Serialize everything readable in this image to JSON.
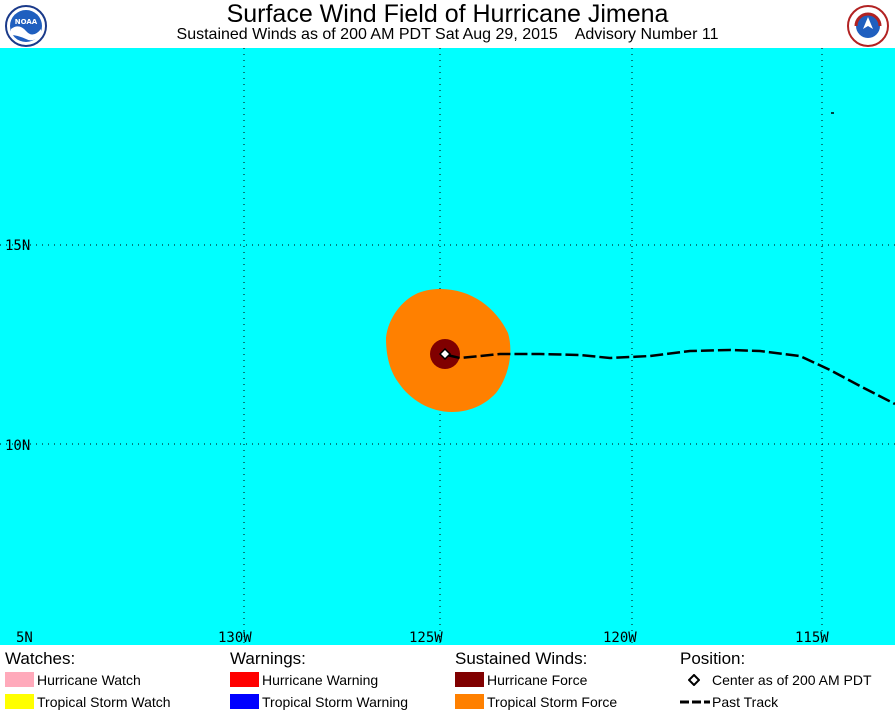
{
  "header": {
    "title": "Surface Wind Field of Hurricane Jimena",
    "subtitle": "Sustained Winds as of 200 AM PDT Sat Aug 29, 2015    Advisory Number 11",
    "left_logo_text": "NOAA",
    "right_logo_text": "NATIONAL WEATHER SERVICE"
  },
  "map": {
    "ocean_color": "#00ffff",
    "lat_labels": [
      "15N",
      "10N",
      "5N"
    ],
    "lon_labels": [
      "130W",
      "125W",
      "120W",
      "115W"
    ],
    "tropical_storm_force_color": "#ff8000",
    "hurricane_force_color": "#800000",
    "track_color": "#000000"
  },
  "legend": {
    "watches": {
      "heading": "Watches:",
      "items": [
        {
          "label": "Hurricane Watch",
          "color": "#ffaabb"
        },
        {
          "label": "Tropical Storm Watch",
          "color": "#ffff00"
        }
      ]
    },
    "warnings": {
      "heading": "Warnings:",
      "items": [
        {
          "label": "Hurricane Warning",
          "color": "#ff0000"
        },
        {
          "label": "Tropical Storm Warning",
          "color": "#0000ff"
        }
      ]
    },
    "winds": {
      "heading": "Sustained Winds:",
      "items": [
        {
          "label": "Hurricane Force",
          "color": "#800000"
        },
        {
          "label": "Tropical Storm Force",
          "color": "#ff8000"
        }
      ]
    },
    "position": {
      "heading": "Position:",
      "items": [
        {
          "label": "Center as of 200 AM PDT"
        },
        {
          "label": "Past Track"
        }
      ]
    }
  }
}
